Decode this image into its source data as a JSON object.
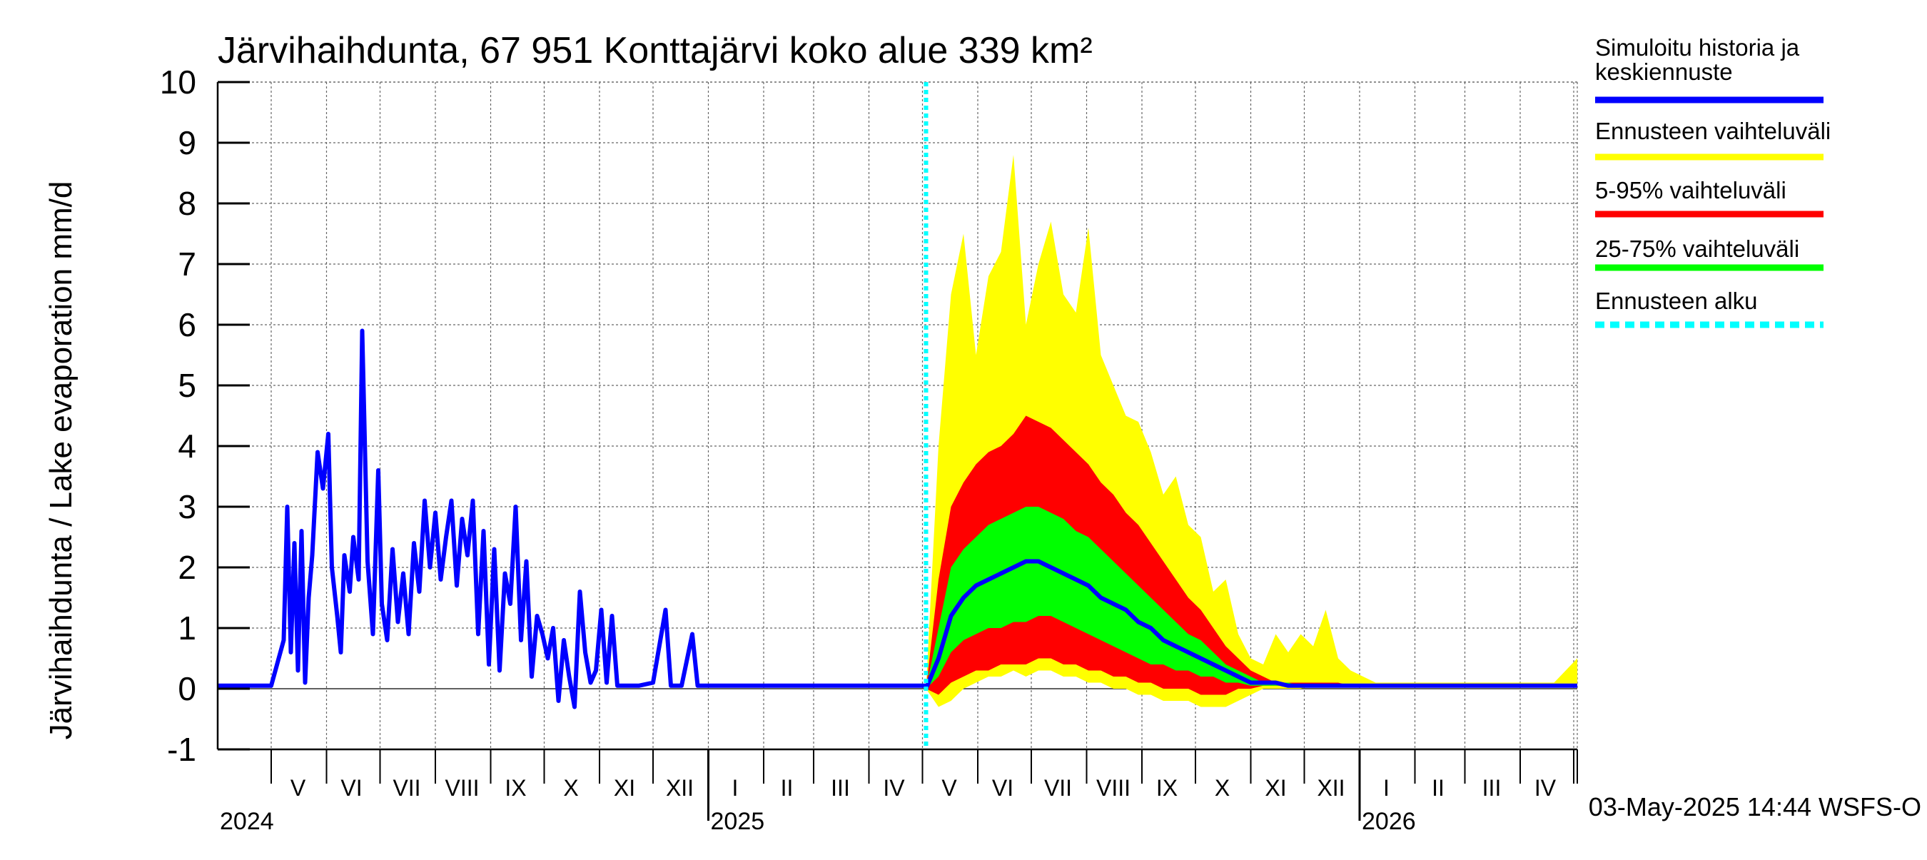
{
  "chart_data": {
    "type": "line",
    "title": "Järvihaihdunta, 67 951 Konttajärvi koko alue 339 km²",
    "ylabel": "Järvihaihdunta / Lake evaporation   mm/d",
    "ylim": [
      -1,
      10
    ],
    "yticks": [
      "-1",
      "0",
      "1",
      "2",
      "3",
      "4",
      "5",
      "6",
      "7",
      "8",
      "9",
      "10"
    ],
    "xlim": [
      "2024-04-01",
      "2026-05-03"
    ],
    "grid": true,
    "forecast_start": "2025-05-03",
    "timestamp": "03-May-2025 14:44 WSFS-O",
    "year_labels": [
      {
        "label": "2024",
        "date": "2024-04-01"
      },
      {
        "label": "2025",
        "date": "2025-01-01"
      },
      {
        "label": "2026",
        "date": "2026-01-01"
      }
    ],
    "month_labels": [
      {
        "label": "V",
        "date": "2024-05-16"
      },
      {
        "label": "VI",
        "date": "2024-06-15"
      },
      {
        "label": "VII",
        "date": "2024-07-16"
      },
      {
        "label": "VIII",
        "date": "2024-08-16"
      },
      {
        "label": "IX",
        "date": "2024-09-15"
      },
      {
        "label": "X",
        "date": "2024-10-16"
      },
      {
        "label": "XI",
        "date": "2024-11-15"
      },
      {
        "label": "XII",
        "date": "2024-12-16"
      },
      {
        "label": "I",
        "date": "2025-01-16"
      },
      {
        "label": "II",
        "date": "2025-02-14"
      },
      {
        "label": "III",
        "date": "2025-03-16"
      },
      {
        "label": "IV",
        "date": "2025-04-15"
      },
      {
        "label": "V",
        "date": "2025-05-16"
      },
      {
        "label": "VI",
        "date": "2025-06-15"
      },
      {
        "label": "VII",
        "date": "2025-07-16"
      },
      {
        "label": "VIII",
        "date": "2025-08-16"
      },
      {
        "label": "IX",
        "date": "2025-09-15"
      },
      {
        "label": "X",
        "date": "2025-10-16"
      },
      {
        "label": "XI",
        "date": "2025-11-15"
      },
      {
        "label": "XII",
        "date": "2025-12-16"
      },
      {
        "label": "I",
        "date": "2026-01-16"
      },
      {
        "label": "II",
        "date": "2026-02-14"
      },
      {
        "label": "III",
        "date": "2026-03-16"
      },
      {
        "label": "IV",
        "date": "2026-04-15"
      }
    ],
    "legend": [
      {
        "label": "Simuloitu historia ja keskiennuste",
        "color": "#0000ff",
        "style": "solid"
      },
      {
        "label": "Ennusteen vaihteluväli",
        "color": "#ffff00",
        "style": "solid"
      },
      {
        "label": "5-95% vaihteluväli",
        "color": "#ff0000",
        "style": "solid"
      },
      {
        "label": "25-75% vaihteluväli",
        "color": "#00ff00",
        "style": "solid"
      },
      {
        "label": "Ennusteen alku",
        "color": "#00ffff",
        "style": "dashed"
      }
    ],
    "history": {
      "name": "Simuloitu historia ja keskiennuste",
      "color": "#0000ff",
      "x": [
        "2024-04-01",
        "2024-05-01",
        "2024-05-08",
        "2024-05-10",
        "2024-05-12",
        "2024-05-14",
        "2024-05-16",
        "2024-05-18",
        "2024-05-20",
        "2024-05-22",
        "2024-05-24",
        "2024-05-27",
        "2024-05-30",
        "2024-06-02",
        "2024-06-04",
        "2024-06-07",
        "2024-06-09",
        "2024-06-11",
        "2024-06-14",
        "2024-06-16",
        "2024-06-19",
        "2024-06-21",
        "2024-06-24",
        "2024-06-27",
        "2024-06-30",
        "2024-07-02",
        "2024-07-05",
        "2024-07-08",
        "2024-07-11",
        "2024-07-14",
        "2024-07-17",
        "2024-07-20",
        "2024-07-23",
        "2024-07-26",
        "2024-07-29",
        "2024-08-01",
        "2024-08-04",
        "2024-08-07",
        "2024-08-10",
        "2024-08-13",
        "2024-08-16",
        "2024-08-19",
        "2024-08-22",
        "2024-08-25",
        "2024-08-28",
        "2024-08-31",
        "2024-09-03",
        "2024-09-06",
        "2024-09-09",
        "2024-09-12",
        "2024-09-15",
        "2024-09-18",
        "2024-09-21",
        "2024-09-24",
        "2024-09-27",
        "2024-09-30",
        "2024-10-03",
        "2024-10-06",
        "2024-10-09",
        "2024-10-12",
        "2024-10-15",
        "2024-10-18",
        "2024-10-21",
        "2024-10-24",
        "2024-10-27",
        "2024-10-30",
        "2024-11-02",
        "2024-11-05",
        "2024-11-08",
        "2024-11-11",
        "2024-11-14",
        "2024-11-17",
        "2024-11-20",
        "2024-11-23",
        "2024-12-01",
        "2024-12-08",
        "2024-12-11",
        "2024-12-14",
        "2024-12-17",
        "2024-12-23",
        "2024-12-26",
        "2024-12-28",
        "2025-01-02",
        "2025-05-03"
      ],
      "y": [
        0.05,
        0.05,
        0.8,
        3.0,
        0.6,
        2.4,
        0.3,
        2.6,
        0.1,
        1.5,
        2.2,
        3.9,
        3.3,
        4.2,
        2.0,
        1.2,
        0.6,
        2.2,
        1.6,
        2.5,
        1.8,
        5.9,
        2.1,
        0.9,
        3.6,
        1.4,
        0.8,
        2.3,
        1.1,
        1.9,
        0.9,
        2.4,
        1.6,
        3.1,
        2.0,
        2.9,
        1.8,
        2.5,
        3.1,
        1.7,
        2.8,
        2.2,
        3.1,
        0.9,
        2.6,
        0.4,
        2.3,
        0.3,
        1.9,
        1.4,
        3.0,
        0.8,
        2.1,
        0.2,
        1.2,
        0.9,
        0.5,
        1.0,
        -0.2,
        0.8,
        0.2,
        -0.3,
        1.6,
        0.6,
        0.1,
        0.3,
        1.3,
        0.1,
        1.2,
        0.05,
        0.05,
        0.05,
        0.05,
        0.05,
        0.1,
        1.3,
        0.05,
        0.05,
        0.05,
        0.9,
        0.05,
        0.05,
        0.05,
        0.05
      ]
    },
    "forecast": {
      "x": [
        "2025-05-03",
        "2025-05-10",
        "2025-05-17",
        "2025-05-24",
        "2025-05-31",
        "2025-06-07",
        "2025-06-14",
        "2025-06-21",
        "2025-06-28",
        "2025-07-05",
        "2025-07-12",
        "2025-07-19",
        "2025-07-26",
        "2025-08-02",
        "2025-08-09",
        "2025-08-16",
        "2025-08-23",
        "2025-08-30",
        "2025-09-06",
        "2025-09-13",
        "2025-09-20",
        "2025-09-27",
        "2025-10-04",
        "2025-10-11",
        "2025-10-18",
        "2025-10-25",
        "2025-11-01",
        "2025-11-08",
        "2025-11-15",
        "2025-11-22",
        "2025-11-29",
        "2025-12-06",
        "2025-12-13",
        "2025-12-20",
        "2025-12-27",
        "2026-01-10",
        "2026-02-01",
        "2026-03-01",
        "2026-04-01",
        "2026-04-20",
        "2026-05-03"
      ],
      "min": [
        0.0,
        -0.3,
        -0.2,
        0.0,
        0.1,
        0.2,
        0.2,
        0.3,
        0.2,
        0.3,
        0.3,
        0.2,
        0.2,
        0.1,
        0.1,
        0.0,
        0.0,
        -0.1,
        -0.1,
        -0.2,
        -0.2,
        -0.2,
        -0.3,
        -0.3,
        -0.3,
        -0.2,
        -0.1,
        0.0,
        0.0,
        0.0,
        0.0,
        0.05,
        0.05,
        0.05,
        0.05,
        0.05,
        0.05,
        0.05,
        0.05,
        0.05,
        0.05
      ],
      "p5": [
        0.0,
        -0.1,
        0.1,
        0.2,
        0.3,
        0.3,
        0.4,
        0.4,
        0.4,
        0.5,
        0.5,
        0.4,
        0.4,
        0.3,
        0.3,
        0.2,
        0.2,
        0.1,
        0.1,
        0.0,
        0.0,
        0.0,
        -0.1,
        -0.1,
        -0.1,
        0.0,
        0.0,
        0.05,
        0.05,
        0.05,
        0.05,
        0.05,
        0.05,
        0.05,
        0.05,
        0.05,
        0.05,
        0.05,
        0.05,
        0.05,
        0.05
      ],
      "p25": [
        0.0,
        0.2,
        0.6,
        0.8,
        0.9,
        1.0,
        1.0,
        1.1,
        1.1,
        1.2,
        1.2,
        1.1,
        1.0,
        0.9,
        0.8,
        0.7,
        0.6,
        0.5,
        0.4,
        0.4,
        0.3,
        0.3,
        0.2,
        0.2,
        0.1,
        0.1,
        0.05,
        0.05,
        0.05,
        0.05,
        0.05,
        0.05,
        0.05,
        0.05,
        0.05,
        0.05,
        0.05,
        0.05,
        0.05,
        0.05,
        0.05
      ],
      "median": [
        0.0,
        0.5,
        1.2,
        1.5,
        1.7,
        1.8,
        1.9,
        2.0,
        2.1,
        2.1,
        2.0,
        1.9,
        1.8,
        1.7,
        1.5,
        1.4,
        1.3,
        1.1,
        1.0,
        0.8,
        0.7,
        0.6,
        0.5,
        0.4,
        0.3,
        0.2,
        0.1,
        0.1,
        0.1,
        0.05,
        0.05,
        0.05,
        0.05,
        0.05,
        0.05,
        0.05,
        0.05,
        0.05,
        0.05,
        0.05,
        0.05
      ],
      "p75": [
        0.0,
        1.0,
        2.0,
        2.3,
        2.5,
        2.7,
        2.8,
        2.9,
        3.0,
        3.0,
        2.9,
        2.8,
        2.6,
        2.5,
        2.3,
        2.1,
        1.9,
        1.7,
        1.5,
        1.3,
        1.1,
        0.9,
        0.8,
        0.6,
        0.4,
        0.3,
        0.2,
        0.1,
        0.1,
        0.1,
        0.05,
        0.05,
        0.05,
        0.05,
        0.05,
        0.05,
        0.05,
        0.05,
        0.05,
        0.05,
        0.05
      ],
      "p95": [
        0.0,
        1.8,
        3.0,
        3.4,
        3.7,
        3.9,
        4.0,
        4.2,
        4.5,
        4.4,
        4.3,
        4.1,
        3.9,
        3.7,
        3.4,
        3.2,
        2.9,
        2.7,
        2.4,
        2.1,
        1.8,
        1.5,
        1.3,
        1.0,
        0.7,
        0.5,
        0.3,
        0.2,
        0.1,
        0.1,
        0.1,
        0.1,
        0.1,
        0.1,
        0.05,
        0.05,
        0.05,
        0.05,
        0.05,
        0.05,
        0.05
      ],
      "max": [
        0.0,
        4.0,
        6.5,
        7.5,
        5.5,
        6.8,
        7.2,
        8.8,
        6.0,
        7.0,
        7.7,
        6.5,
        6.2,
        7.6,
        5.5,
        5.0,
        4.5,
        4.4,
        3.9,
        3.2,
        3.5,
        2.7,
        2.5,
        1.6,
        1.8,
        0.9,
        0.5,
        0.4,
        0.9,
        0.6,
        0.9,
        0.7,
        1.3,
        0.5,
        0.3,
        0.1,
        0.1,
        0.1,
        0.1,
        0.1,
        0.5
      ]
    }
  }
}
